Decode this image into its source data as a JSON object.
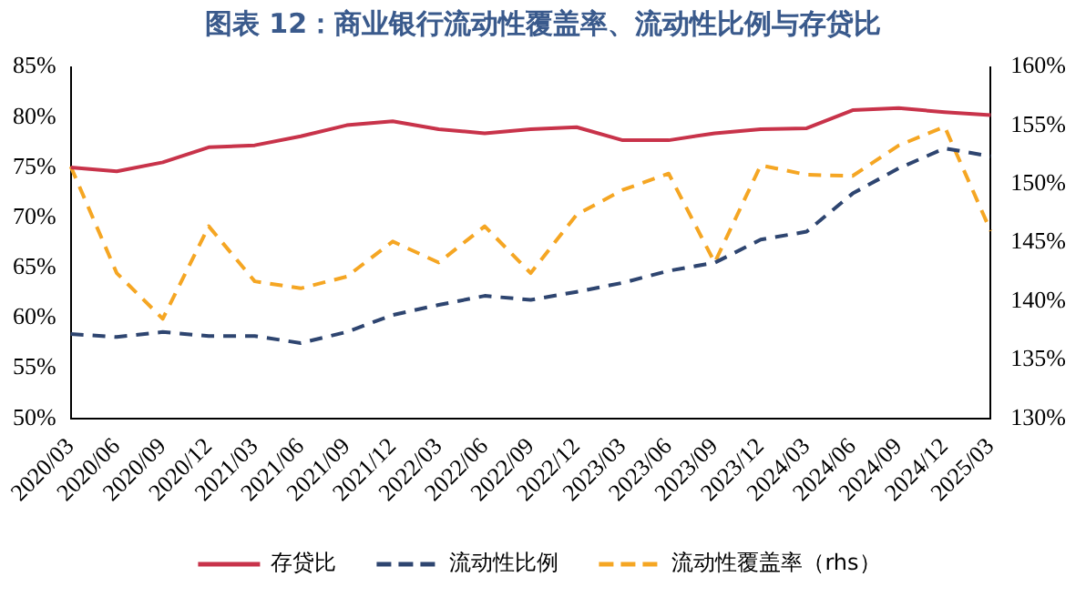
{
  "chart_data": {
    "type": "line",
    "title": "图表 12：商业银行流动性覆盖率、流动性比例与存贷比",
    "categories": [
      "2020/03",
      "2020/06",
      "2020/09",
      "2020/12",
      "2021/03",
      "2021/06",
      "2021/09",
      "2021/12",
      "2022/03",
      "2022/06",
      "2022/09",
      "2022/12",
      "2023/03",
      "2023/06",
      "2023/09",
      "2023/12",
      "2024/03",
      "2024/06",
      "2024/09",
      "2024/12",
      "2025/03"
    ],
    "series": [
      {
        "name": "存贷比",
        "color": "#c8334a",
        "line_style": "solid",
        "values": [
          75.0,
          74.6,
          75.5,
          77.0,
          77.2,
          78.1,
          79.2,
          79.6,
          78.8,
          78.4,
          78.8,
          79.0,
          77.7,
          77.7,
          78.4,
          78.8,
          78.9,
          80.7,
          80.9,
          80.5,
          80.2
        ]
      },
      {
        "name": "流动性比例",
        "color": "#2e4570",
        "line_style": "dashed",
        "values": [
          58.4,
          58.1,
          58.6,
          58.2,
          58.2,
          57.5,
          58.6,
          60.3,
          61.3,
          62.2,
          61.8,
          62.6,
          63.5,
          64.7,
          65.5,
          67.8,
          68.6,
          72.4,
          74.9,
          76.9,
          76.1
        ]
      },
      {
        "name": "流动性覆盖率（rhs）",
        "color": "#f5a623",
        "line_style": "dashed",
        "axis": "y2",
        "values": [
          151.5,
          142.4,
          138.5,
          146.4,
          141.7,
          141.1,
          142.1,
          145.1,
          143.3,
          146.4,
          142.4,
          147.4,
          149.5,
          150.9,
          143.3,
          151.6,
          150.8,
          150.7,
          153.3,
          154.9,
          146.0
        ]
      }
    ],
    "ylim": [
      50,
      85
    ],
    "yticks": [
      {
        "value": 50,
        "label": "50%"
      },
      {
        "value": 55,
        "label": "55%"
      },
      {
        "value": 60,
        "label": "60%"
      },
      {
        "value": 65,
        "label": "65%"
      },
      {
        "value": 70,
        "label": "70%"
      },
      {
        "value": 75,
        "label": "75%"
      },
      {
        "value": 80,
        "label": "80%"
      },
      {
        "value": 85,
        "label": "85%"
      }
    ],
    "y2lim": [
      130,
      160
    ],
    "y2ticks": [
      {
        "value": 130,
        "label": "130%"
      },
      {
        "value": 135,
        "label": "135%"
      },
      {
        "value": 140,
        "label": "140%"
      },
      {
        "value": 145,
        "label": "145%"
      },
      {
        "value": 150,
        "label": "150%"
      },
      {
        "value": 155,
        "label": "155%"
      },
      {
        "value": 160,
        "label": "160%"
      }
    ],
    "grid": false,
    "legend": "bottom",
    "marker": "none"
  }
}
